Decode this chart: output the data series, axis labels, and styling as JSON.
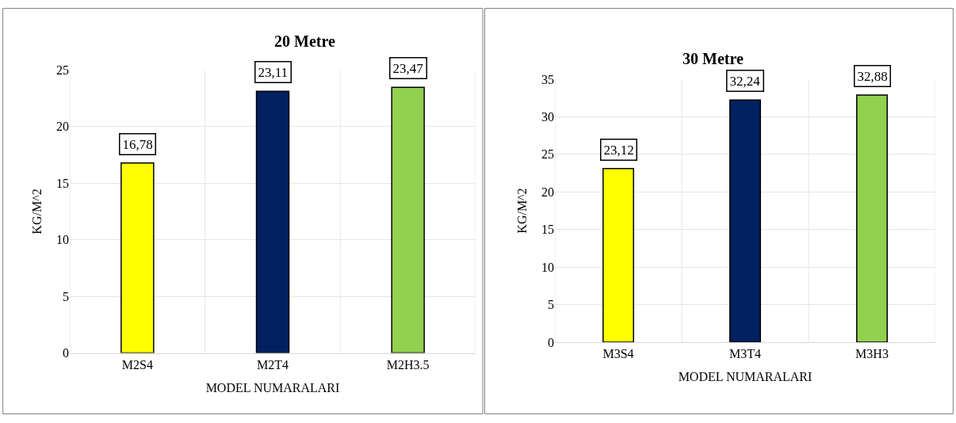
{
  "chart_data": [
    {
      "type": "bar",
      "title": "20 Metre",
      "xlabel": "MODEL NUMARALARI",
      "ylabel": "KG/M^2",
      "categories": [
        "M2S4",
        "M2T4",
        "M2H3.5"
      ],
      "values": [
        16.78,
        23.11,
        23.47
      ],
      "colors": [
        "#ffff00",
        "#002060",
        "#92d050"
      ],
      "value_labels": [
        "16,78",
        "23,11",
        "23,47"
      ],
      "ylim": [
        0,
        25
      ],
      "yticks": [
        0,
        5,
        10,
        15,
        20,
        25
      ],
      "grid": true
    },
    {
      "type": "bar",
      "title": "30 Metre",
      "xlabel": "MODEL NUMARALARI",
      "ylabel": "KG/M^2",
      "categories": [
        "M3S4",
        "M3T4",
        "M3H3"
      ],
      "values": [
        23.12,
        32.24,
        32.88
      ],
      "colors": [
        "#ffff00",
        "#002060",
        "#92d050"
      ],
      "value_labels": [
        "23,12",
        "32,24",
        "32,88"
      ],
      "ylim": [
        0,
        35
      ],
      "yticks": [
        0,
        5,
        10,
        15,
        20,
        25,
        30,
        35
      ],
      "grid": true
    }
  ]
}
